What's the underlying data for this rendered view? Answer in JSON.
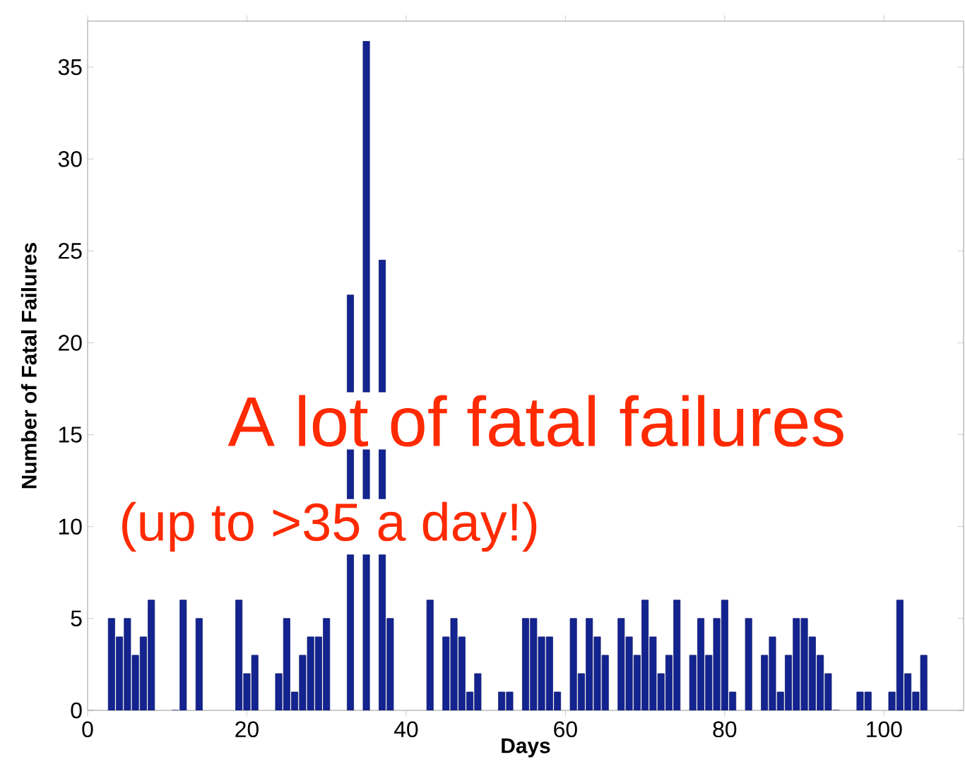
{
  "chart_data": {
    "type": "bar",
    "xlabel": "Days",
    "ylabel": "Number of Fatal Failures",
    "x": [
      3,
      4,
      5,
      6,
      7,
      8,
      9,
      10,
      11,
      12,
      13,
      14,
      15,
      16,
      17,
      18,
      19,
      20,
      21,
      22,
      23,
      24,
      25,
      26,
      27,
      28,
      29,
      30,
      31,
      32,
      33,
      34,
      35,
      36,
      37,
      38,
      39,
      40,
      41,
      42,
      43,
      44,
      45,
      46,
      47,
      48,
      49,
      50,
      51,
      52,
      53,
      54,
      55,
      56,
      57,
      58,
      59,
      60,
      61,
      62,
      63,
      64,
      65,
      66,
      67,
      68,
      69,
      70,
      71,
      72,
      73,
      74,
      75,
      76,
      77,
      78,
      79,
      80,
      81,
      82,
      83,
      84,
      85,
      86,
      87,
      88,
      89,
      90,
      91,
      92,
      93,
      94,
      95,
      96,
      97,
      98,
      99,
      100,
      101,
      102,
      103,
      104,
      105
    ],
    "values": [
      5,
      4,
      5,
      3,
      4,
      6,
      null,
      null,
      0,
      6,
      null,
      5,
      null,
      null,
      null,
      null,
      6,
      2,
      3,
      null,
      null,
      2,
      5,
      1,
      3,
      4,
      4,
      5,
      null,
      null,
      22.6,
      null,
      36.4,
      null,
      24.5,
      5,
      null,
      null,
      null,
      null,
      6,
      null,
      4,
      5,
      4,
      1,
      2,
      null,
      null,
      1,
      1,
      null,
      5,
      5,
      4,
      4,
      1,
      null,
      5,
      2,
      5,
      4,
      3,
      null,
      5,
      4,
      3,
      6,
      4,
      2,
      3,
      6,
      null,
      3,
      5,
      3,
      5,
      6,
      1,
      null,
      5,
      null,
      3,
      4,
      1,
      3,
      5,
      5,
      4,
      3,
      2,
      0,
      null,
      null,
      1,
      1,
      null,
      null,
      1,
      6,
      2,
      1,
      3
    ],
    "color": "#13238f",
    "xlim": [
      0,
      110
    ],
    "ylim": [
      0,
      37.5
    ],
    "xticks": [
      0,
      20,
      40,
      60,
      80,
      100
    ],
    "yticks": [
      0,
      5,
      10,
      15,
      20,
      25,
      30,
      35
    ],
    "annotations": [
      "A lot of fatal failures",
      "(up to >35 a day!)"
    ]
  }
}
